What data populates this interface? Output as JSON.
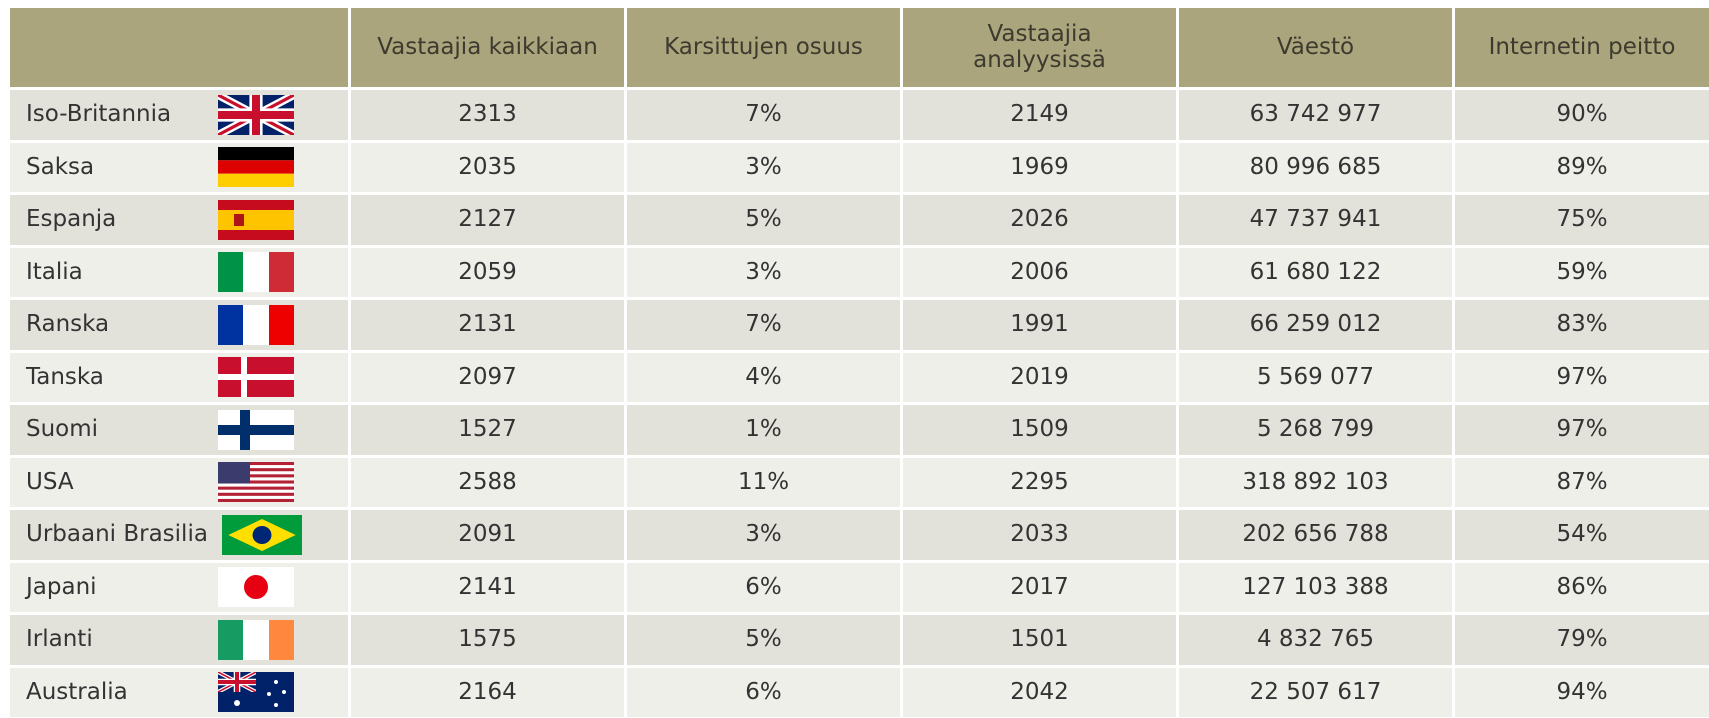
{
  "table": {
    "columns": [
      "Vastaajia kaikkiaan",
      "Karsittujen osuus",
      "Vastaajia analyysissä",
      "Väestö",
      "Internetin peitto"
    ],
    "rows": [
      {
        "country": "Iso-Britannia",
        "cells": [
          "2313",
          "7%",
          "2149",
          "63 742 977",
          "90%"
        ]
      },
      {
        "country": "Saksa",
        "cells": [
          "2035",
          "3%",
          "1969",
          "80 996 685",
          "89%"
        ]
      },
      {
        "country": "Espanja",
        "cells": [
          "2127",
          "5%",
          "2026",
          "47 737 941",
          "75%"
        ]
      },
      {
        "country": "Italia",
        "cells": [
          "2059",
          "3%",
          "2006",
          "61 680 122",
          "59%"
        ]
      },
      {
        "country": "Ranska",
        "cells": [
          "2131",
          "7%",
          "1991",
          "66 259 012",
          "83%"
        ]
      },
      {
        "country": "Tanska",
        "cells": [
          "2097",
          "4%",
          "2019",
          "5 569 077",
          "97%"
        ]
      },
      {
        "country": "Suomi",
        "cells": [
          "1527",
          "1%",
          "1509",
          "5 268 799",
          "97%"
        ]
      },
      {
        "country": "USA",
        "cells": [
          "2588",
          "11%",
          "2295",
          "318 892 103",
          "87%"
        ]
      },
      {
        "country": "Urbaani Brasilia",
        "cells": [
          "2091",
          "3%",
          "2033",
          "202 656 788",
          "54%"
        ]
      },
      {
        "country": "Japani",
        "cells": [
          "2141",
          "6%",
          "2017",
          "127 103 388",
          "86%"
        ]
      },
      {
        "country": "Irlanti",
        "cells": [
          "1575",
          "5%",
          "1501",
          "4 832 765",
          "79%"
        ]
      },
      {
        "country": "Australia",
        "cells": [
          "2164",
          "6%",
          "2042",
          "22 507 617",
          "94%"
        ]
      }
    ]
  }
}
